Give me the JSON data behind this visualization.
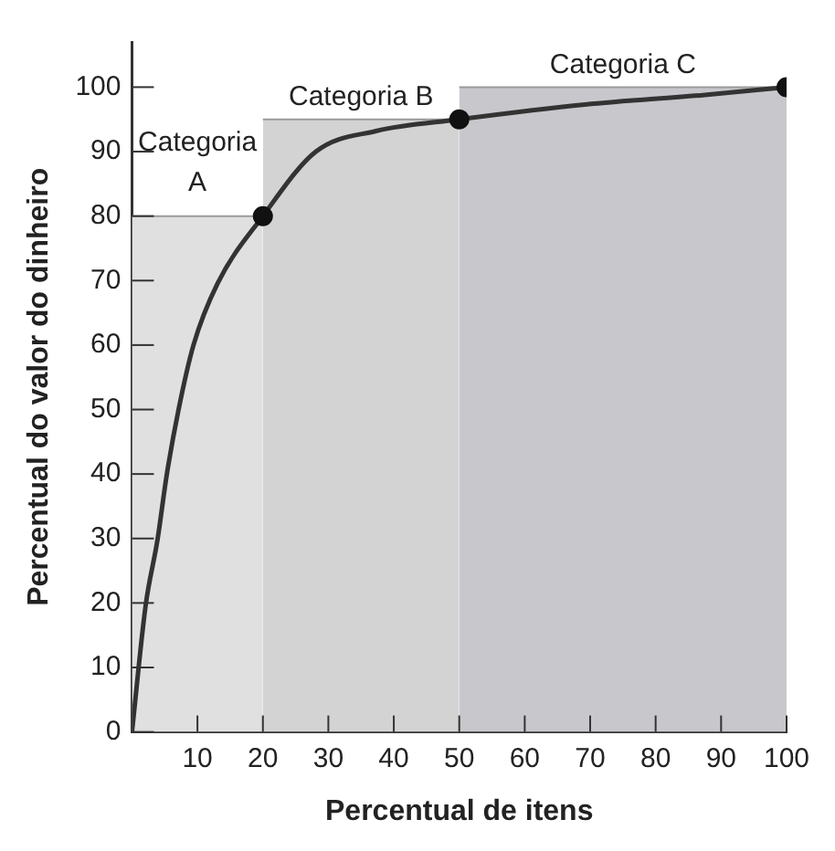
{
  "chart_data": {
    "type": "line",
    "xlabel": "Percentual de itens",
    "ylabel": "Percentual do valor do dinheiro",
    "xlim": [
      0,
      100
    ],
    "ylim": [
      0,
      107
    ],
    "xticks": [
      10,
      20,
      30,
      40,
      50,
      60,
      70,
      80,
      90,
      100
    ],
    "yticks": [
      0,
      10,
      20,
      30,
      40,
      50,
      60,
      70,
      80,
      90,
      100
    ],
    "grid": false,
    "legend": false,
    "series": [
      {
        "type": "area",
        "color": "#e0e0e0",
        "x": [
          0,
          20
        ],
        "values": [
          80,
          80
        ]
      },
      {
        "type": "area",
        "color": "#d3d3d3",
        "x": [
          20,
          50
        ],
        "values": [
          95,
          95
        ]
      },
      {
        "type": "area",
        "color": "#c8c8cc",
        "x": [
          50,
          100
        ],
        "values": [
          100,
          100
        ]
      },
      {
        "type": "line",
        "color": "#333333",
        "marker": "none",
        "x": [
          0,
          2.1,
          3.9,
          5.3,
          7.1,
          9.4,
          13.1,
          20,
          28.1,
          37.3,
          50,
          69.2,
          87.5,
          100
        ],
        "values": [
          0,
          19.7,
          29.8,
          39.8,
          49.9,
          60,
          69.6,
          80,
          90,
          93.2,
          95,
          97.3,
          98.8,
          100
        ]
      },
      {
        "type": "scatter",
        "color": "#111111",
        "marker": "circle",
        "x": [
          20,
          50,
          100
        ],
        "values": [
          80,
          95,
          100
        ]
      }
    ],
    "annotations": [
      "Categoria A",
      "Categoria B",
      "Categoria C"
    ]
  }
}
